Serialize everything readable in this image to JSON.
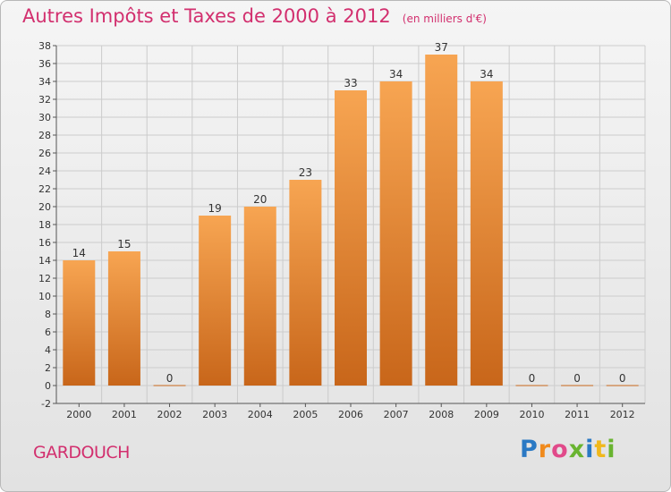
{
  "header": {
    "title": "Autres Impôts et Taxes de 2000 à 2012",
    "unit": "(en milliers d'€)"
  },
  "footer": {
    "commune": "GARDOUCH",
    "brand": [
      "P",
      "r",
      "o",
      "x",
      "i",
      "t",
      "i"
    ]
  },
  "colors": {
    "title": "#d22f6e",
    "bar_top": "#f7a552",
    "bar_bottom": "#c8661a",
    "grid": "#cccccc"
  },
  "chart_data": {
    "type": "bar",
    "title": "Autres Impôts et Taxes de 2000 à 2012",
    "categories": [
      "2000",
      "2001",
      "2002",
      "2003",
      "2004",
      "2005",
      "2006",
      "2007",
      "2008",
      "2009",
      "2010",
      "2011",
      "2012"
    ],
    "values": [
      14,
      15,
      0,
      19,
      20,
      23,
      33,
      34,
      37,
      34,
      0,
      0,
      0
    ],
    "ylim": [
      -2,
      38
    ],
    "yticks": [
      -2,
      0,
      2,
      4,
      6,
      8,
      10,
      12,
      14,
      16,
      18,
      20,
      22,
      24,
      26,
      28,
      30,
      32,
      34,
      36,
      38
    ],
    "grid": true,
    "xlabel": "",
    "ylabel": ""
  }
}
